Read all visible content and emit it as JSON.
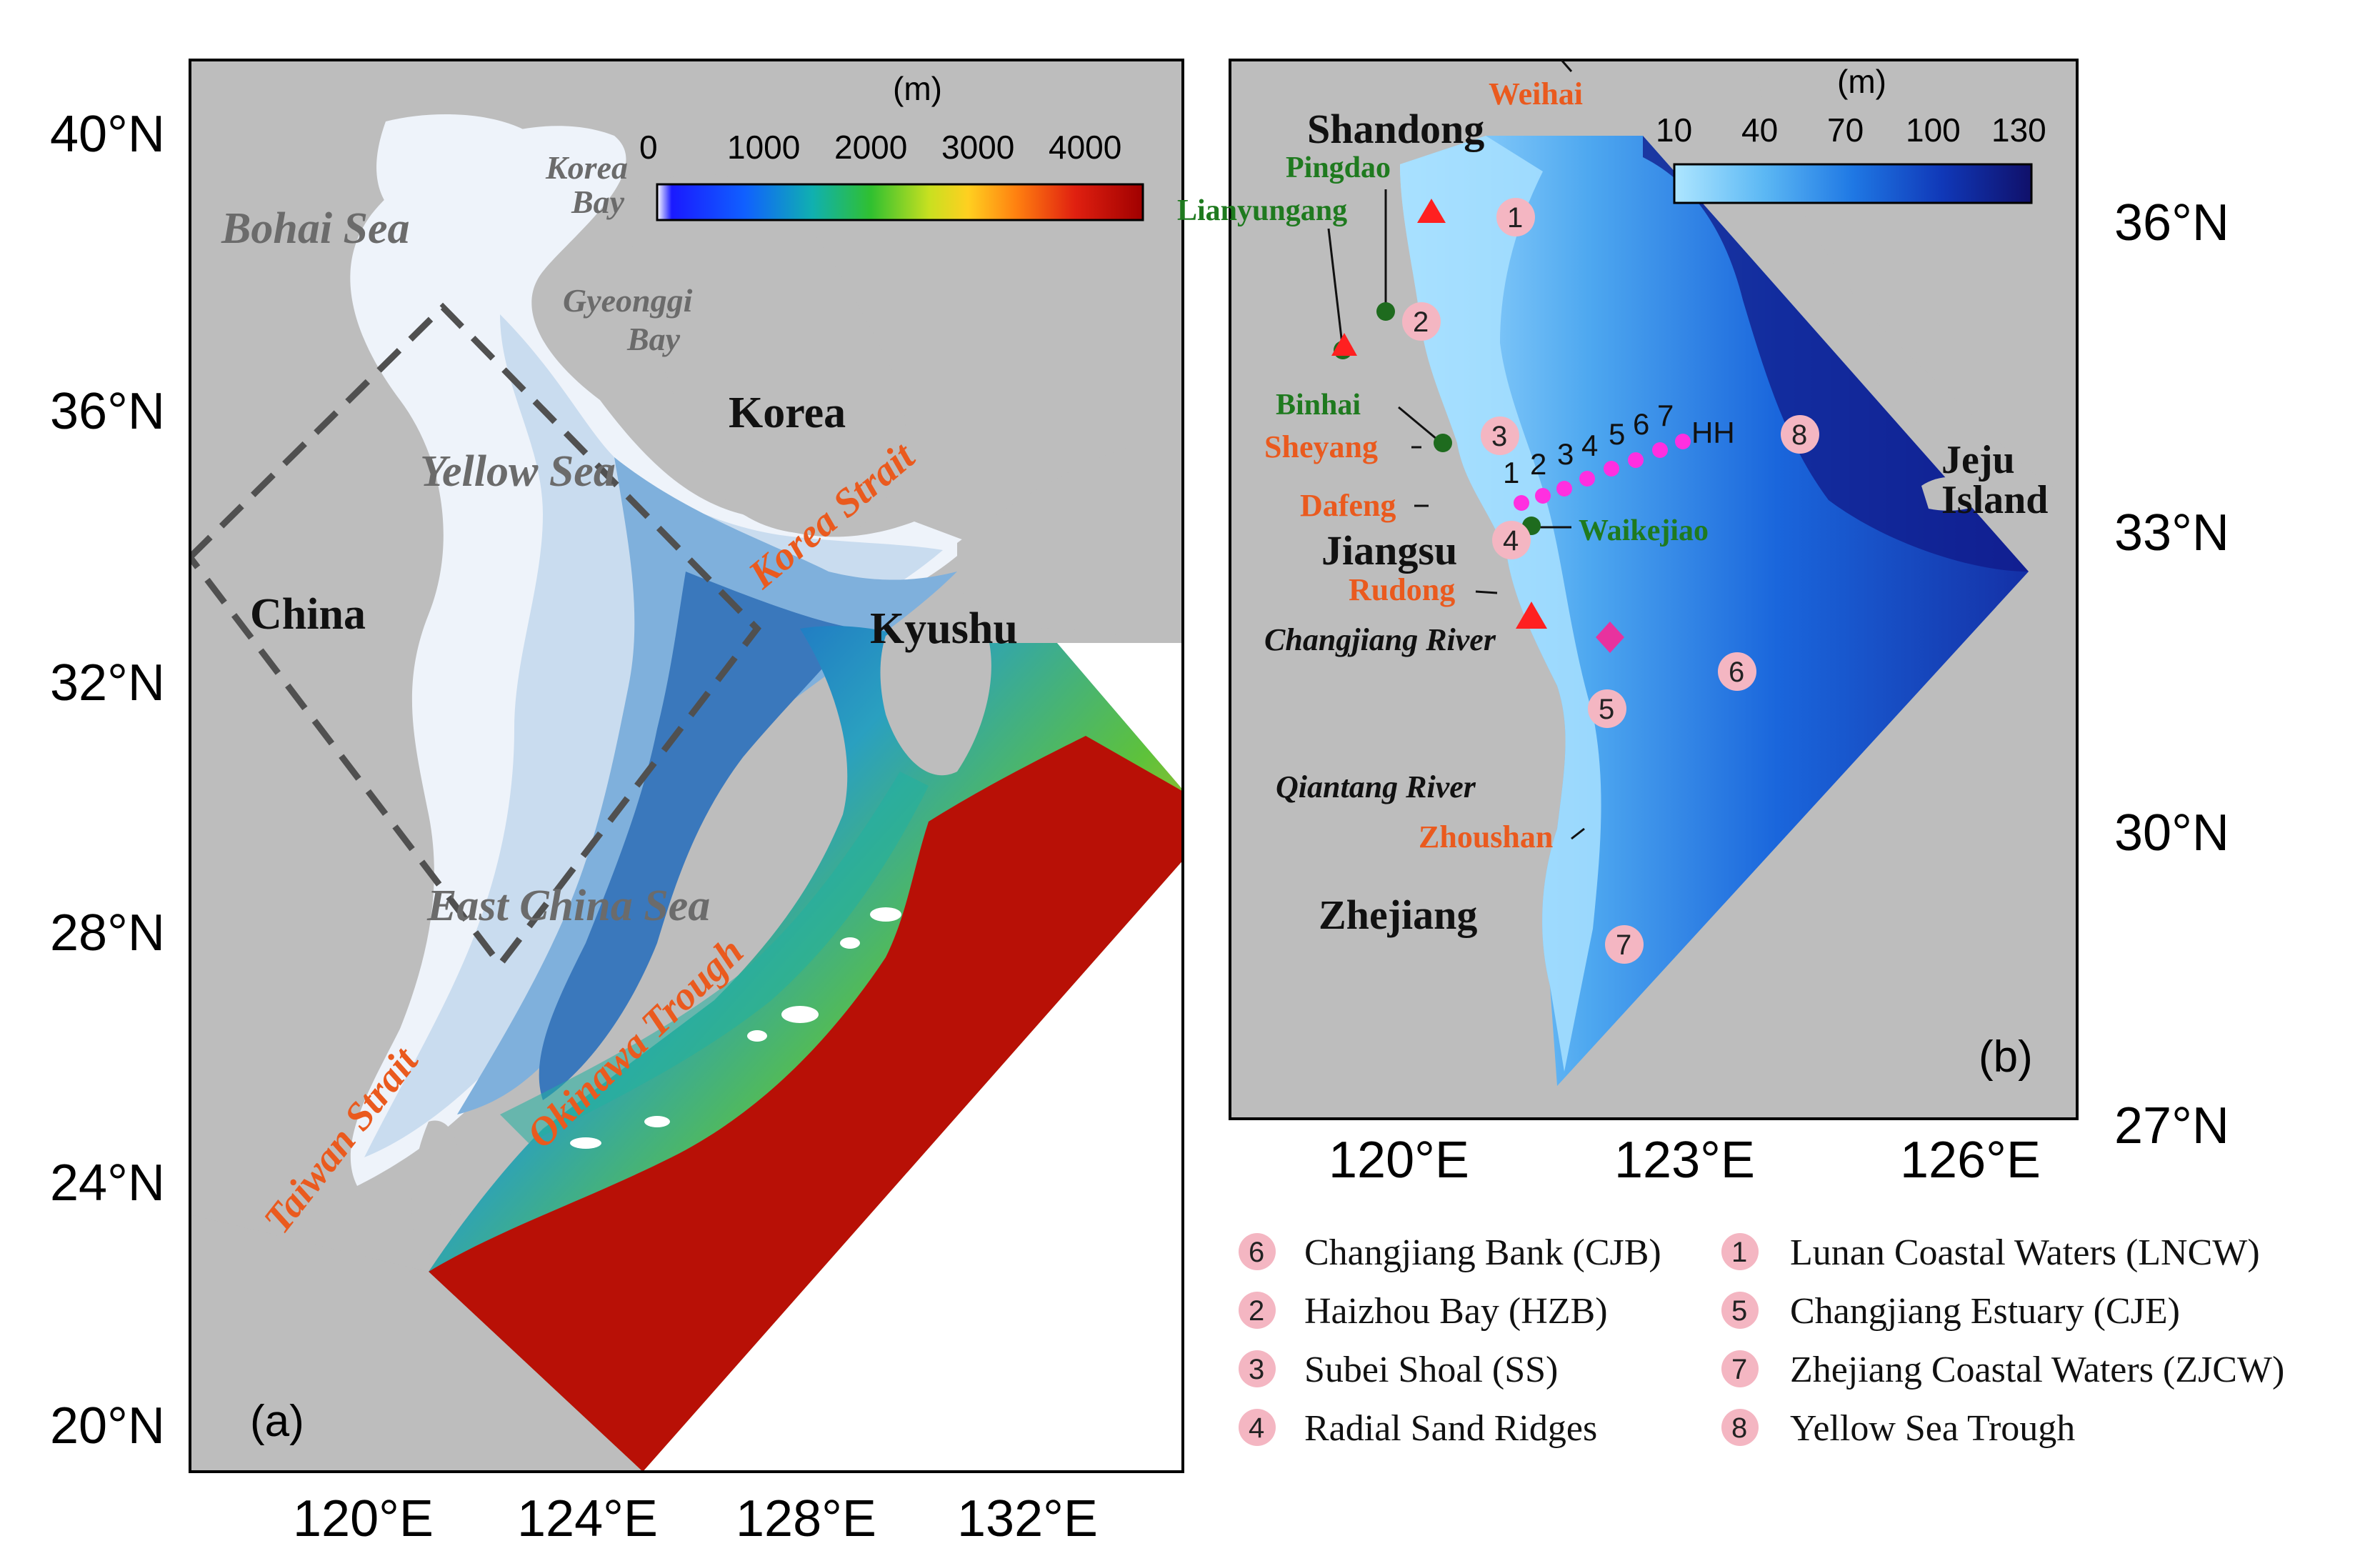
{
  "panel_a": {
    "letter": "(a)",
    "lat_ticks": [
      "40°N",
      "36°N",
      "32°N",
      "28°N",
      "24°N",
      "20°N"
    ],
    "lon_ticks": [
      "120°E",
      "124°E",
      "128°E",
      "132°E"
    ],
    "colorbar": {
      "unit": "(m)",
      "ticks": [
        "0",
        "1000",
        "2000",
        "3000",
        "4000"
      ]
    },
    "seas": {
      "bohai": "Bohai Sea",
      "korea_bay_1": "Korea",
      "korea_bay_2": "Bay",
      "gyeonggi_1": "Gyeonggi",
      "gyeonggi_2": "Bay",
      "yellow": "Yellow Sea",
      "east_china": "East China Sea"
    },
    "land": {
      "china": "China",
      "korea": "Korea",
      "kyushu": "Kyushu"
    },
    "features": {
      "korea_strait": "Korea Strait",
      "okinawa": "Okinawa Trough",
      "taiwan": "Taiwan Strait"
    }
  },
  "panel_b": {
    "letter": "(b)",
    "lat_ticks": [
      "36°N",
      "33°N",
      "30°N",
      "27°N"
    ],
    "lon_ticks": [
      "120°E",
      "123°E",
      "126°E"
    ],
    "colorbar": {
      "unit": "(m)",
      "ticks": [
        "10",
        "40",
        "70",
        "100",
        "130"
      ]
    },
    "land": {
      "shandong": "Shandong",
      "jiangsu": "Jiangsu",
      "zhejiang": "Zhejiang",
      "jeju_1": "Jeju",
      "jeju_2": "Island"
    },
    "cities_orange": {
      "weihai": "Weihai",
      "sheyang": "Sheyang",
      "dafeng": "Dafeng",
      "rudong": "Rudong",
      "zhoushan": "Zhoushan"
    },
    "stations_green": {
      "pingdao": "Pingdao",
      "lianyungang": "Lianyungang",
      "binhai": "Binhai",
      "waikejiao": "Waikejiao"
    },
    "rivers": {
      "changjiang": "Changjiang River",
      "qiantang": "Qiantang River"
    },
    "transect": {
      "labels": [
        "1",
        "2",
        "3",
        "4",
        "5",
        "6",
        "7"
      ],
      "hh": "HH"
    },
    "regions": [
      "1",
      "2",
      "3",
      "4",
      "5",
      "6",
      "7",
      "8"
    ]
  },
  "legend": {
    "left": [
      {
        "num": "6",
        "text": "Changjiang Bank (CJB)"
      },
      {
        "num": "2",
        "text": "Haizhou Bay (HZB)"
      },
      {
        "num": "3",
        "text": "Subei Shoal (SS)"
      },
      {
        "num": "4",
        "text": "Radial Sand Ridges"
      }
    ],
    "right": [
      {
        "num": "1",
        "text": "Lunan Coastal Waters (LNCW)"
      },
      {
        "num": "5",
        "text": "Changjiang Estuary (CJE)"
      },
      {
        "num": "7",
        "text": "Zhejiang Coastal Waters (ZJCW)"
      },
      {
        "num": "8",
        "text": "Yellow Sea Trough"
      }
    ]
  },
  "colors": {
    "land": "#bdbdbd",
    "shelf_light": "#eef3fa",
    "marker_fill": "#f4b6c2",
    "transect": "#ff2fe0",
    "station": "#1e6b1e",
    "orange": "#ea5a1e",
    "triangle": "#ff2020"
  }
}
